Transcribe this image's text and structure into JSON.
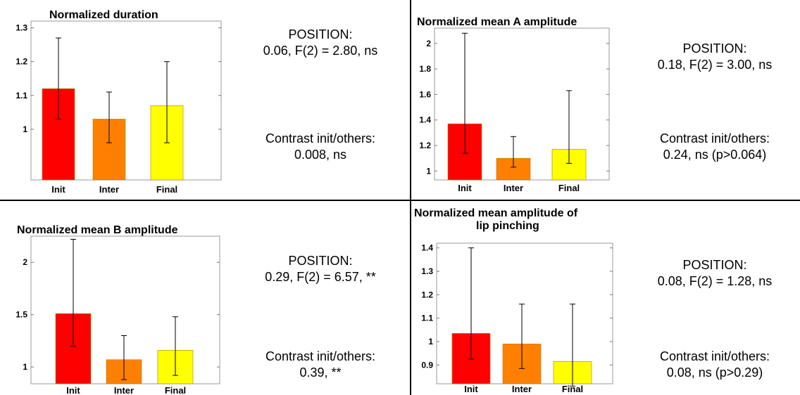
{
  "panels": [
    {
      "chart_data": {
        "type": "bar",
        "title": "Normalized duration",
        "categories": [
          "Init",
          "Inter",
          "Final"
        ],
        "values": [
          1.12,
          1.03,
          1.07
        ],
        "error_low": [
          1.03,
          0.96,
          0.96
        ],
        "error_high": [
          1.27,
          1.11,
          1.2
        ],
        "ylim": [
          0.85,
          1.32
        ],
        "yticks": [
          1,
          1.1,
          1.2,
          1.3
        ],
        "ytick_labels": [
          "1",
          "1.1",
          "1.2",
          "1.3"
        ],
        "bar_colors": [
          "#ff0000",
          "#ff8000",
          "#ffff00"
        ]
      },
      "position_label": "POSITION:",
      "position_stats": "0.06, F(2) = 2.80, ns",
      "contrast_label": "Contrast init/others:",
      "contrast_stats": "0.008, ns"
    },
    {
      "chart_data": {
        "type": "bar",
        "title": "Normalized mean A amplitude",
        "categories": [
          "Init",
          "Inter",
          "Final"
        ],
        "values": [
          1.37,
          1.1,
          1.17
        ],
        "error_low": [
          1.14,
          1.03,
          1.06
        ],
        "error_high": [
          2.08,
          1.27,
          1.63
        ],
        "ylim": [
          0.93,
          2.12
        ],
        "yticks": [
          1,
          1.2,
          1.4,
          1.6,
          1.8,
          2
        ],
        "ytick_labels": [
          "1",
          "1.2",
          "1.4",
          "1.6",
          "1.8",
          "2"
        ],
        "bar_colors": [
          "#ff0000",
          "#ff8000",
          "#ffff00"
        ]
      },
      "position_label": "POSITION:",
      "position_stats": "0.18, F(2) = 3.00, ns",
      "contrast_label": "Contrast init/others:",
      "contrast_stats": "0.24, ns (p>0.064)"
    },
    {
      "chart_data": {
        "type": "bar",
        "title": "Normalized mean B amplitude",
        "categories": [
          "Init",
          "Inter",
          "Final"
        ],
        "values": [
          1.51,
          1.07,
          1.16
        ],
        "error_low": [
          1.2,
          0.88,
          0.92
        ],
        "error_high": [
          2.22,
          1.3,
          1.48
        ],
        "ylim": [
          0.84,
          2.25
        ],
        "yticks": [
          1,
          1.5,
          2
        ],
        "ytick_labels": [
          "1",
          "1.5",
          "2"
        ],
        "bar_colors": [
          "#ff0000",
          "#ff8000",
          "#ffff00"
        ]
      },
      "position_label": "POSITION:",
      "position_stats": "0.29, F(2) = 6.57, **",
      "contrast_label": "Contrast init/others:",
      "contrast_stats": "0.39, **"
    },
    {
      "chart_data": {
        "type": "bar",
        "title": "Normalized mean amplitude of lip pinching",
        "title_lines": [
          "Normalized mean amplitude of",
          "lip pinching"
        ],
        "categories": [
          "Init",
          "Inter",
          "Final"
        ],
        "values": [
          1.035,
          0.99,
          0.915
        ],
        "error_low": [
          0.925,
          0.885,
          0.81
        ],
        "error_high": [
          1.4,
          1.16,
          1.16
        ],
        "ylim": [
          0.82,
          1.42
        ],
        "yticks": [
          0.9,
          1,
          1.1,
          1.2,
          1.3,
          1.4
        ],
        "ytick_labels": [
          "0.9",
          "1",
          "1.1",
          "1.2",
          "1.3",
          "1.4"
        ],
        "bar_colors": [
          "#ff0000",
          "#ff8000",
          "#ffff00"
        ]
      },
      "position_label": "POSITION:",
      "position_stats": "0.08, F(2) = 1.28, ns",
      "contrast_label": "Contrast init/others:",
      "contrast_stats": "0.08, ns (p>0.29)"
    }
  ]
}
